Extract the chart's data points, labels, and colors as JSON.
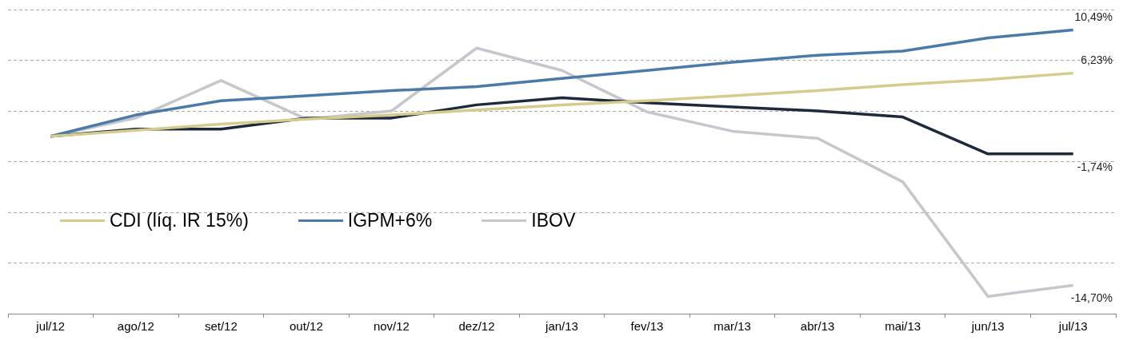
{
  "chart_data": {
    "type": "line",
    "categories": [
      "jul/12",
      "ago/12",
      "set/12",
      "out/12",
      "nov/12",
      "dez/12",
      "jan/13",
      "fev/13",
      "mar/13",
      "abr/13",
      "mai/13",
      "jun/13",
      "jul/13"
    ],
    "series": [
      {
        "name": "CDI (líq. IR 15%)",
        "color": "#d5cb8c",
        "values": [
          0,
          0.6,
          1.2,
          1.7,
          2.1,
          2.6,
          3.1,
          3.5,
          4.0,
          4.5,
          5.1,
          5.6,
          6.23
        ],
        "value_labels": [
          null,
          null,
          null,
          null,
          null,
          null,
          null,
          null,
          null,
          null,
          null,
          null,
          "6,23%"
        ]
      },
      {
        "name": "IGPM+6%",
        "color": "#4a7aa8",
        "values": [
          0,
          2.1,
          3.5,
          4.0,
          4.5,
          4.9,
          5.7,
          6.5,
          7.3,
          8.0,
          8.4,
          9.7,
          10.49
        ],
        "value_labels": [
          null,
          null,
          null,
          null,
          null,
          null,
          null,
          null,
          null,
          null,
          null,
          null,
          "10,49%"
        ]
      },
      {
        "color": "#1c2a3a",
        "values": [
          0,
          0.7,
          0.7,
          1.8,
          1.8,
          3.1,
          3.8,
          3.3,
          2.9,
          2.5,
          1.9,
          -1.74,
          -1.74
        ],
        "value_labels": [
          null,
          null,
          null,
          null,
          null,
          null,
          null,
          null,
          null,
          null,
          null,
          null,
          "-1,74%"
        ]
      },
      {
        "name": "IBOV",
        "color": "#c6c6cc",
        "values": [
          0,
          1.8,
          5.5,
          1.7,
          2.5,
          8.7,
          6.5,
          2.4,
          0.5,
          -0.2,
          -4.5,
          -15.8,
          -14.7
        ],
        "value_labels": [
          null,
          null,
          null,
          null,
          null,
          null,
          null,
          null,
          null,
          null,
          null,
          null,
          "-14,70%"
        ]
      }
    ],
    "ylim": [
      -17.5,
      12.5
    ],
    "yticks": [
      {
        "value": -12.5,
        "label": null
      },
      {
        "value": -7.5,
        "label": null
      },
      {
        "value": -2.5,
        "label": null
      },
      {
        "value": 2.5,
        "label": null
      },
      {
        "value": 7.5,
        "label": null
      },
      {
        "value": 12.5,
        "label": null
      }
    ],
    "grid": "y",
    "legend": "left",
    "tick_labels": "x",
    "marker": "none",
    "line_style": "solid"
  }
}
